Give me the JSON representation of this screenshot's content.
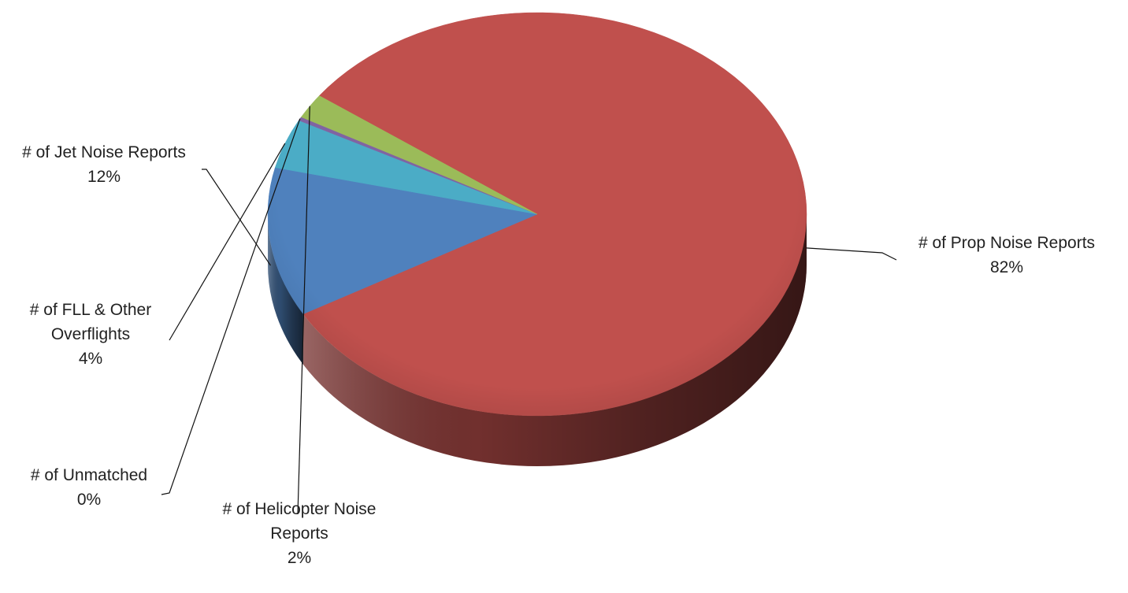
{
  "chart_data": {
    "type": "pie",
    "style": "3d",
    "series": [
      {
        "label_lines": [
          "# of Prop Noise Reports"
        ],
        "percent_label": "82%",
        "value": 82,
        "color": "#c0504d"
      },
      {
        "label_lines": [
          "# of Jet Noise Reports"
        ],
        "percent_label": "12%",
        "value": 12,
        "color": "#4f81bd"
      },
      {
        "label_lines": [
          "# of FLL & Other",
          "Overflights"
        ],
        "percent_label": "4%",
        "value": 4,
        "color": "#4bacc6"
      },
      {
        "label_lines": [
          "# of Unmatched"
        ],
        "percent_label": "0%",
        "value": 0.3,
        "color": "#8064a2"
      },
      {
        "label_lines": [
          "# of Helicopter Noise",
          "Reports"
        ],
        "percent_label": "2%",
        "value": 2,
        "color": "#9bbb59"
      }
    ]
  }
}
